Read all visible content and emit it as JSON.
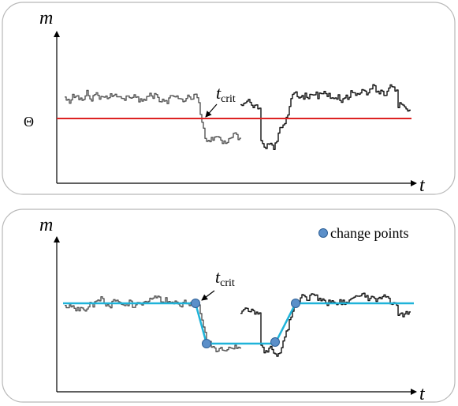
{
  "top_panel": {
    "y_axis_label": "m",
    "x_axis_label": "t",
    "threshold_label": "Θ",
    "tcrit_main": "t",
    "tcrit_sub": "crit"
  },
  "bottom_panel": {
    "y_axis_label": "m",
    "x_axis_label": "t",
    "tcrit_main": "t",
    "tcrit_sub": "crit",
    "legend_label": "change points"
  },
  "colors": {
    "threshold_line": "#dd2222",
    "fit_line": "#1fb3d9",
    "change_point_fill": "#5b8fc9",
    "change_point_stroke": "#2d5f96",
    "signal_before": "#555555",
    "signal_after": "#111111",
    "panel_border": "#b8b8b8"
  }
}
